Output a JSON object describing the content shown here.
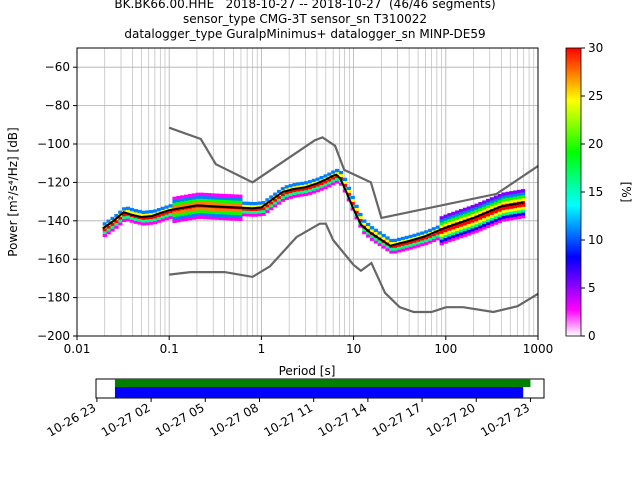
{
  "chart_data": {
    "type": "line",
    "title_lines": [
      "BK.BK66.00.HHE   2018-10-27 -- 2018-10-27  (46/46 segments)",
      "sensor_type CMG-3T sensor_sn T310022",
      "datalogger_type GuralpMinimus+ datalogger_sn MINP-DE59"
    ],
    "xlabel": "Period [s]",
    "ylabel": "Power [m²/s⁴/Hz] [dB]",
    "x_scale": "log",
    "xlim": [
      0.01,
      1000
    ],
    "ylim": [
      -200,
      -50
    ],
    "x_ticks": [
      {
        "v": 0.01,
        "label": "0.01"
      },
      {
        "v": 0.1,
        "label": "0.1"
      },
      {
        "v": 1,
        "label": "1"
      },
      {
        "v": 10,
        "label": "10"
      },
      {
        "v": 100,
        "label": "100"
      },
      {
        "v": 1000,
        "label": "1000"
      }
    ],
    "y_ticks": [
      -60,
      -80,
      -100,
      -120,
      -140,
      -160,
      -180,
      -200
    ],
    "grid": true,
    "colorbar": {
      "label": "[%]",
      "range": [
        0,
        30
      ],
      "ticks": [
        0,
        5,
        10,
        15,
        20,
        25,
        30
      ],
      "colors": [
        "#ffffff",
        "#ff00ff",
        "#7f00ff",
        "#0000ff",
        "#0080ff",
        "#00ffff",
        "#00ff80",
        "#00ff00",
        "#80ff00",
        "#ffff00",
        "#ff8000",
        "#ff0000"
      ]
    },
    "series": [
      {
        "role": "model-upper",
        "color": "#666666",
        "x": [
          0.1,
          0.22,
          0.32,
          0.8,
          3.8,
          4.6,
          6.3,
          7.9,
          15.4,
          20,
          354.8,
          1000
        ],
        "y": [
          -91.5,
          -97.4,
          -110.5,
          -120.0,
          -98.0,
          -96.5,
          -101.0,
          -113.5,
          -120.0,
          -138.5,
          -126.0,
          -111.5
        ]
      },
      {
        "role": "model-lower",
        "color": "#666666",
        "x": [
          0.1,
          0.17,
          0.4,
          0.8,
          1.24,
          2.4,
          4.3,
          5.0,
          6.0,
          10,
          12,
          15.6,
          21.9,
          31.6,
          45,
          70,
          101,
          154,
          328,
          600,
          1000
        ],
        "y": [
          -168.0,
          -166.7,
          -166.7,
          -169.2,
          -163.7,
          -148.5,
          -141.5,
          -141.5,
          -150.0,
          -163.0,
          -166.0,
          -162.0,
          -177.5,
          -185.0,
          -187.5,
          -187.5,
          -185.0,
          -185.0,
          -187.5,
          -184.5,
          -178.0
        ]
      },
      {
        "role": "mode",
        "x": [
          0.019,
          0.025,
          0.032,
          0.04,
          0.05,
          0.065,
          0.08,
          0.1,
          0.13,
          0.2,
          0.3,
          0.5,
          0.8,
          1.0,
          1.3,
          1.7,
          2.2,
          3.0,
          4.0,
          5.0,
          6.0,
          6.5,
          7.2,
          8.5,
          10,
          12,
          15,
          20,
          25,
          30,
          40,
          60,
          100,
          200,
          400,
          700
        ],
        "y": [
          -144,
          -140,
          -135.5,
          -137,
          -138,
          -137.5,
          -136,
          -134.5,
          -133.5,
          -132,
          -132.5,
          -133,
          -133.5,
          -133,
          -129,
          -125,
          -123.5,
          -122.5,
          -120.5,
          -118.5,
          -116.5,
          -116,
          -118,
          -126,
          -134,
          -142,
          -146,
          -150,
          -153,
          -152,
          -150.5,
          -148,
          -143.5,
          -138.5,
          -132.5,
          -130.5
        ]
      }
    ],
    "time_axis": {
      "tick_labels": [
        "10-26 23",
        "10-27 02",
        "10-27 05",
        "10-27 08",
        "10-27 11",
        "10-27 14",
        "10-27 17",
        "10-27 20",
        "10-27 23"
      ],
      "range_hours": [
        -1.05,
        23.75
      ],
      "data_span_hours": [
        0.0,
        23.0
      ],
      "gaps_span_hours": [
        0.0,
        22.6
      ],
      "data_color": "#008000",
      "gaps_color": "#0000ff"
    }
  }
}
